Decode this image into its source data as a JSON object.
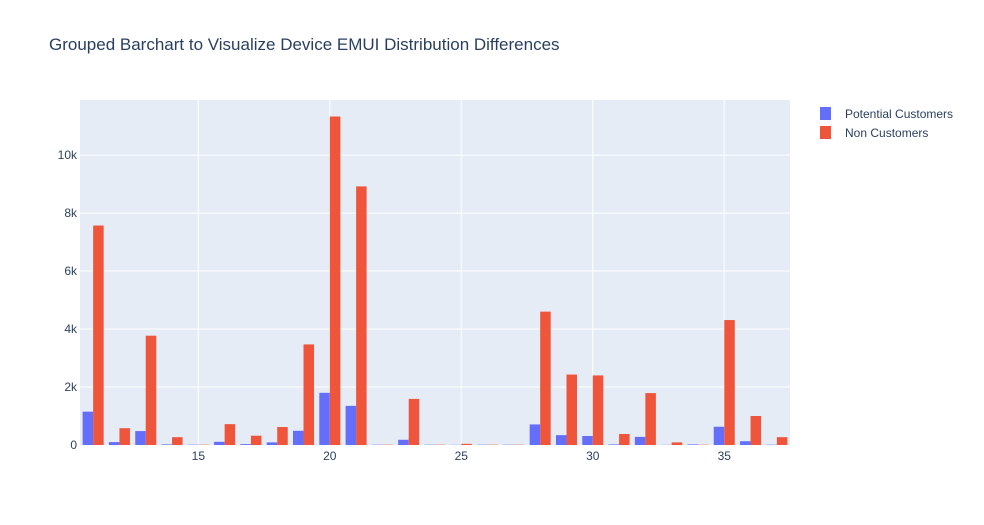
{
  "chart_data": {
    "type": "bar",
    "title": "Grouped Barchart to Visualize Device EMUI Distribution Differences",
    "xlabel": "",
    "ylabel": "",
    "x": [
      11,
      12,
      13,
      14,
      15,
      16,
      17,
      18,
      19,
      20,
      21,
      22,
      23,
      24,
      25,
      26,
      27,
      28,
      29,
      30,
      31,
      32,
      33,
      34,
      35,
      36,
      37
    ],
    "series": [
      {
        "name": "Potential Customers",
        "color": "#636efa",
        "values": [
          1150,
          100,
          480,
          20,
          10,
          110,
          30,
          90,
          490,
          1800,
          1350,
          10,
          180,
          10,
          5,
          10,
          10,
          710,
          340,
          310,
          20,
          280,
          5,
          20,
          630,
          130,
          10
        ]
      },
      {
        "name": "Non Customers",
        "color": "#ef553b",
        "values": [
          7570,
          580,
          3770,
          270,
          10,
          720,
          320,
          620,
          3470,
          11330,
          8920,
          10,
          1590,
          10,
          40,
          10,
          10,
          4600,
          2430,
          2400,
          380,
          1790,
          90,
          10,
          4310,
          1000,
          270
        ]
      }
    ],
    "xlim": [
      10.5,
      37.5
    ],
    "ylim": [
      0,
      11900
    ],
    "xticks": [
      15,
      20,
      25,
      30,
      35
    ],
    "yticks": [
      0,
      2000,
      4000,
      6000,
      8000,
      10000
    ],
    "ytick_labels": [
      "0",
      "2k",
      "4k",
      "6k",
      "8k",
      "10k"
    ],
    "grid": true,
    "legend_position": "top-right"
  }
}
